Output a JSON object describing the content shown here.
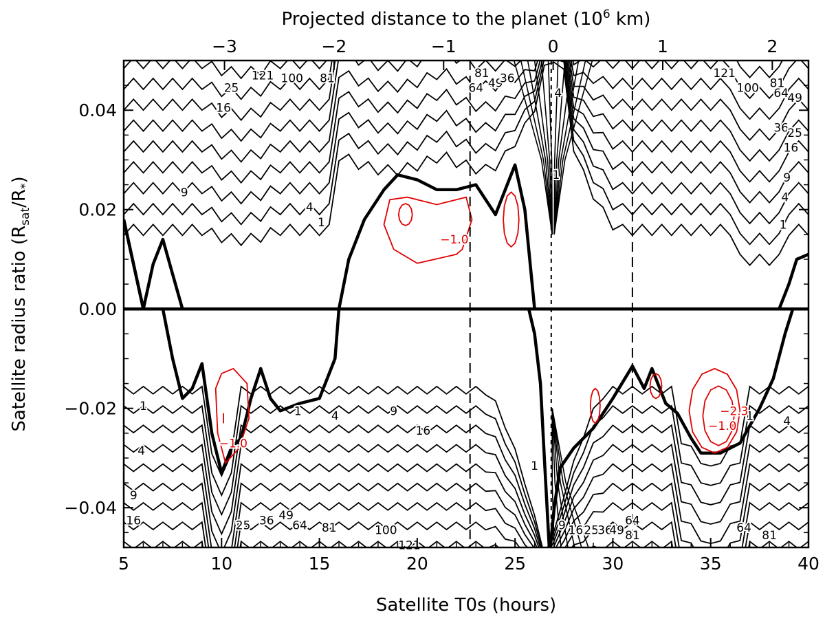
{
  "chart_data": {
    "type": "contour",
    "title": "",
    "xlabel": "Satellite T0s (hours)",
    "ylabel_main": "Satellite radius ratio (R",
    "ylabel_sub1": "sat",
    "ylabel_mid": "/R",
    "ylabel_sub2": "*",
    "ylabel_end": ")",
    "top_xlabel_main": "Projected distance to the planet (10",
    "top_xlabel_sup": "6",
    "top_xlabel_end": " km)",
    "xlim": [
      5,
      40
    ],
    "ylim": [
      -0.048,
      0.05
    ],
    "x_ticks": [
      5,
      10,
      15,
      20,
      25,
      30,
      35,
      40
    ],
    "x_tick_labels": [
      "5",
      "10",
      "15",
      "20",
      "25",
      "30",
      "35",
      "40"
    ],
    "y_ticks": [
      -0.04,
      -0.02,
      0.0,
      0.02,
      0.04
    ],
    "y_tick_labels": [
      "−0.04",
      "−0.02",
      "0.00",
      "0.02",
      "0.04"
    ],
    "top_ticks": [
      -3,
      -2,
      -1,
      0,
      1,
      2
    ],
    "top_tick_labels": [
      "−3",
      "−2",
      "−1",
      "0",
      "1",
      "2"
    ],
    "top_x_hours_per_unit": 5.6,
    "top_x_zero_hours": 26.95,
    "vertical_lines": [
      {
        "x": 22.7,
        "style": "long-dash"
      },
      {
        "x": 26.85,
        "style": "short-dash"
      },
      {
        "x": 31.0,
        "style": "long-dash"
      }
    ],
    "zero_line_y": 0.0,
    "upper_contour_levels": [
      1,
      4,
      9,
      16,
      25,
      36,
      49,
      64,
      81,
      100,
      121
    ],
    "lower_contour_levels": [
      1,
      4,
      9,
      16,
      25,
      36,
      49,
      64,
      81,
      100,
      121
    ],
    "contour_labels_top": [
      {
        "text": "121",
        "x": 12.1,
        "y": 0.047
      },
      {
        "text": "100",
        "x": 13.6,
        "y": 0.0465
      },
      {
        "text": "81",
        "x": 15.4,
        "y": 0.0465
      },
      {
        "text": "25",
        "x": 10.5,
        "y": 0.0445
      },
      {
        "text": "16",
        "x": 10.1,
        "y": 0.0405
      },
      {
        "text": "81",
        "x": 23.3,
        "y": 0.0475
      },
      {
        "text": "64",
        "x": 23.0,
        "y": 0.0445
      },
      {
        "text": "49",
        "x": 24.0,
        "y": 0.0455
      },
      {
        "text": "36",
        "x": 24.6,
        "y": 0.0465
      },
      {
        "text": "121",
        "x": 35.7,
        "y": 0.0475
      },
      {
        "text": "100",
        "x": 36.9,
        "y": 0.0445
      },
      {
        "text": "81",
        "x": 38.4,
        "y": 0.0455
      },
      {
        "text": "64",
        "x": 38.6,
        "y": 0.0435
      },
      {
        "text": "49",
        "x": 39.3,
        "y": 0.0425
      },
      {
        "text": "36",
        "x": 38.6,
        "y": 0.0365
      },
      {
        "text": "25",
        "x": 39.3,
        "y": 0.0355
      },
      {
        "text": "16",
        "x": 39.1,
        "y": 0.0325
      },
      {
        "text": "9",
        "x": 8.1,
        "y": 0.0235
      },
      {
        "text": "4",
        "x": 14.5,
        "y": 0.0205
      },
      {
        "text": "1",
        "x": 15.1,
        "y": 0.0175
      },
      {
        "text": "9",
        "x": 38.9,
        "y": 0.0265
      },
      {
        "text": "4",
        "x": 38.8,
        "y": 0.0225
      },
      {
        "text": "1",
        "x": 38.7,
        "y": 0.017
      },
      {
        "text": "1",
        "x": 27.1,
        "y": 0.027
      },
      {
        "text": "4",
        "x": 27.2,
        "y": 0.0435
      }
    ],
    "contour_labels_bottom": [
      {
        "text": "1",
        "x": 6.0,
        "y": -0.0195
      },
      {
        "text": "1",
        "x": 13.9,
        "y": -0.0205
      },
      {
        "text": "4",
        "x": 15.8,
        "y": -0.0215
      },
      {
        "text": "9",
        "x": 18.8,
        "y": -0.0205
      },
      {
        "text": "16",
        "x": 20.3,
        "y": -0.0245
      },
      {
        "text": "4",
        "x": 5.9,
        "y": -0.0285
      },
      {
        "text": "9",
        "x": 5.5,
        "y": -0.0375
      },
      {
        "text": "16",
        "x": 5.5,
        "y": -0.0425
      },
      {
        "text": "25",
        "x": 11.1,
        "y": -0.0435
      },
      {
        "text": "36",
        "x": 12.3,
        "y": -0.0425
      },
      {
        "text": "49",
        "x": 13.3,
        "y": -0.0415
      },
      {
        "text": "64",
        "x": 14.0,
        "y": -0.0435
      },
      {
        "text": "81",
        "x": 15.5,
        "y": -0.044
      },
      {
        "text": "100",
        "x": 18.4,
        "y": -0.0445
      },
      {
        "text": "121",
        "x": 19.6,
        "y": -0.0475
      },
      {
        "text": "9",
        "x": 27.4,
        "y": -0.0435
      },
      {
        "text": "16",
        "x": 28.1,
        "y": -0.0445
      },
      {
        "text": "25",
        "x": 28.9,
        "y": -0.0445
      },
      {
        "text": "36",
        "x": 29.6,
        "y": -0.0445
      },
      {
        "text": "49",
        "x": 30.2,
        "y": -0.0445
      },
      {
        "text": "64",
        "x": 31.0,
        "y": -0.0425
      },
      {
        "text": "81",
        "x": 31.0,
        "y": -0.0455
      },
      {
        "text": "64",
        "x": 36.7,
        "y": -0.044
      },
      {
        "text": "81",
        "x": 38.0,
        "y": -0.0455
      },
      {
        "text": "4",
        "x": 38.9,
        "y": -0.0225
      },
      {
        "text": "1",
        "x": 37.0,
        "y": -0.0215
      },
      {
        "text": "1",
        "x": 26.0,
        "y": -0.0315
      }
    ],
    "negative_contour_labels": [
      {
        "text": "−1.0",
        "x": 21.9,
        "y": 0.014
      },
      {
        "text": "−1.0",
        "x": 10.6,
        "y": -0.027
      },
      {
        "text": "−2.3",
        "x": 36.2,
        "y": -0.0205
      },
      {
        "text": "−1.0",
        "x": 35.6,
        "y": -0.0235
      }
    ],
    "thick_upper": [
      [
        5,
        0.018
      ],
      [
        6,
        0.0
      ],
      [
        7,
        0.0
      ],
      [
        8,
        0.0
      ],
      [
        16,
        0.0
      ],
      [
        17,
        0.0
      ],
      [
        18,
        0.0
      ],
      [
        19,
        0.0
      ],
      [
        20,
        0.0
      ],
      [
        21,
        0.0
      ],
      [
        22,
        0.0
      ],
      [
        23,
        0.0
      ],
      [
        24,
        0.0
      ],
      [
        25,
        0.0
      ],
      [
        25.7,
        0.0
      ],
      [
        26.1,
        0.0
      ],
      [
        27,
        0.0
      ],
      [
        30,
        0.0
      ],
      [
        35,
        0.0
      ],
      [
        38,
        0.0
      ],
      [
        38.5,
        0.0
      ],
      [
        39,
        0.005
      ],
      [
        39.4,
        0.01
      ],
      [
        40,
        0.011
      ]
    ],
    "thick_upper_curve": [
      [
        5,
        0.018
      ],
      [
        6,
        0.0
      ],
      [
        6.5,
        0.009
      ],
      [
        7,
        0.014
      ],
      [
        7.5,
        0.007
      ],
      [
        8,
        0.0
      ]
    ],
    "thick_bump": [
      [
        16,
        0.0
      ],
      [
        16.5,
        0.01
      ],
      [
        17.3,
        0.018
      ],
      [
        18.3,
        0.024
      ],
      [
        19,
        0.027
      ],
      [
        20,
        0.026
      ],
      [
        21,
        0.024
      ],
      [
        22,
        0.024
      ],
      [
        23,
        0.025
      ],
      [
        24,
        0.019
      ],
      [
        24.5,
        0.024
      ],
      [
        25,
        0.029
      ],
      [
        25.5,
        0.02
      ],
      [
        26,
        0.0
      ]
    ],
    "thick_lower": [
      [
        6.5,
        0.0
      ],
      [
        7,
        0.0
      ],
      [
        7.5,
        -0.01
      ],
      [
        8,
        -0.018
      ],
      [
        8.5,
        -0.016
      ],
      [
        9,
        -0.011
      ],
      [
        9.5,
        -0.025
      ],
      [
        10,
        -0.033
      ],
      [
        10.5,
        -0.028
      ],
      [
        11,
        -0.026
      ],
      [
        11.5,
        -0.018
      ],
      [
        12,
        -0.012
      ],
      [
        12.5,
        -0.018
      ],
      [
        13,
        -0.0205
      ],
      [
        14,
        -0.019
      ],
      [
        15,
        -0.018
      ],
      [
        15.8,
        -0.01
      ],
      [
        16,
        0.0
      ]
    ],
    "thick_lower_right": [
      [
        26.8,
        -0.048
      ],
      [
        27,
        -0.04
      ],
      [
        27.3,
        -0.032
      ],
      [
        28,
        -0.028
      ],
      [
        29,
        -0.024
      ],
      [
        30,
        -0.018
      ],
      [
        31,
        -0.0115
      ],
      [
        31.6,
        -0.016
      ],
      [
        32,
        -0.012
      ],
      [
        32.7,
        -0.019
      ],
      [
        33.3,
        -0.021
      ],
      [
        34,
        -0.026
      ],
      [
        34.5,
        -0.029
      ],
      [
        35.5,
        -0.029
      ],
      [
        36.5,
        -0.027
      ],
      [
        37.5,
        -0.02
      ],
      [
        38.2,
        -0.014
      ],
      [
        38.8,
        -0.005
      ],
      [
        39.2,
        0.0
      ]
    ],
    "thick_drop": [
      [
        25.7,
        0.0
      ],
      [
        26.0,
        -0.005
      ],
      [
        26.3,
        -0.015
      ],
      [
        26.5,
        -0.03
      ],
      [
        26.75,
        -0.048
      ]
    ]
  }
}
